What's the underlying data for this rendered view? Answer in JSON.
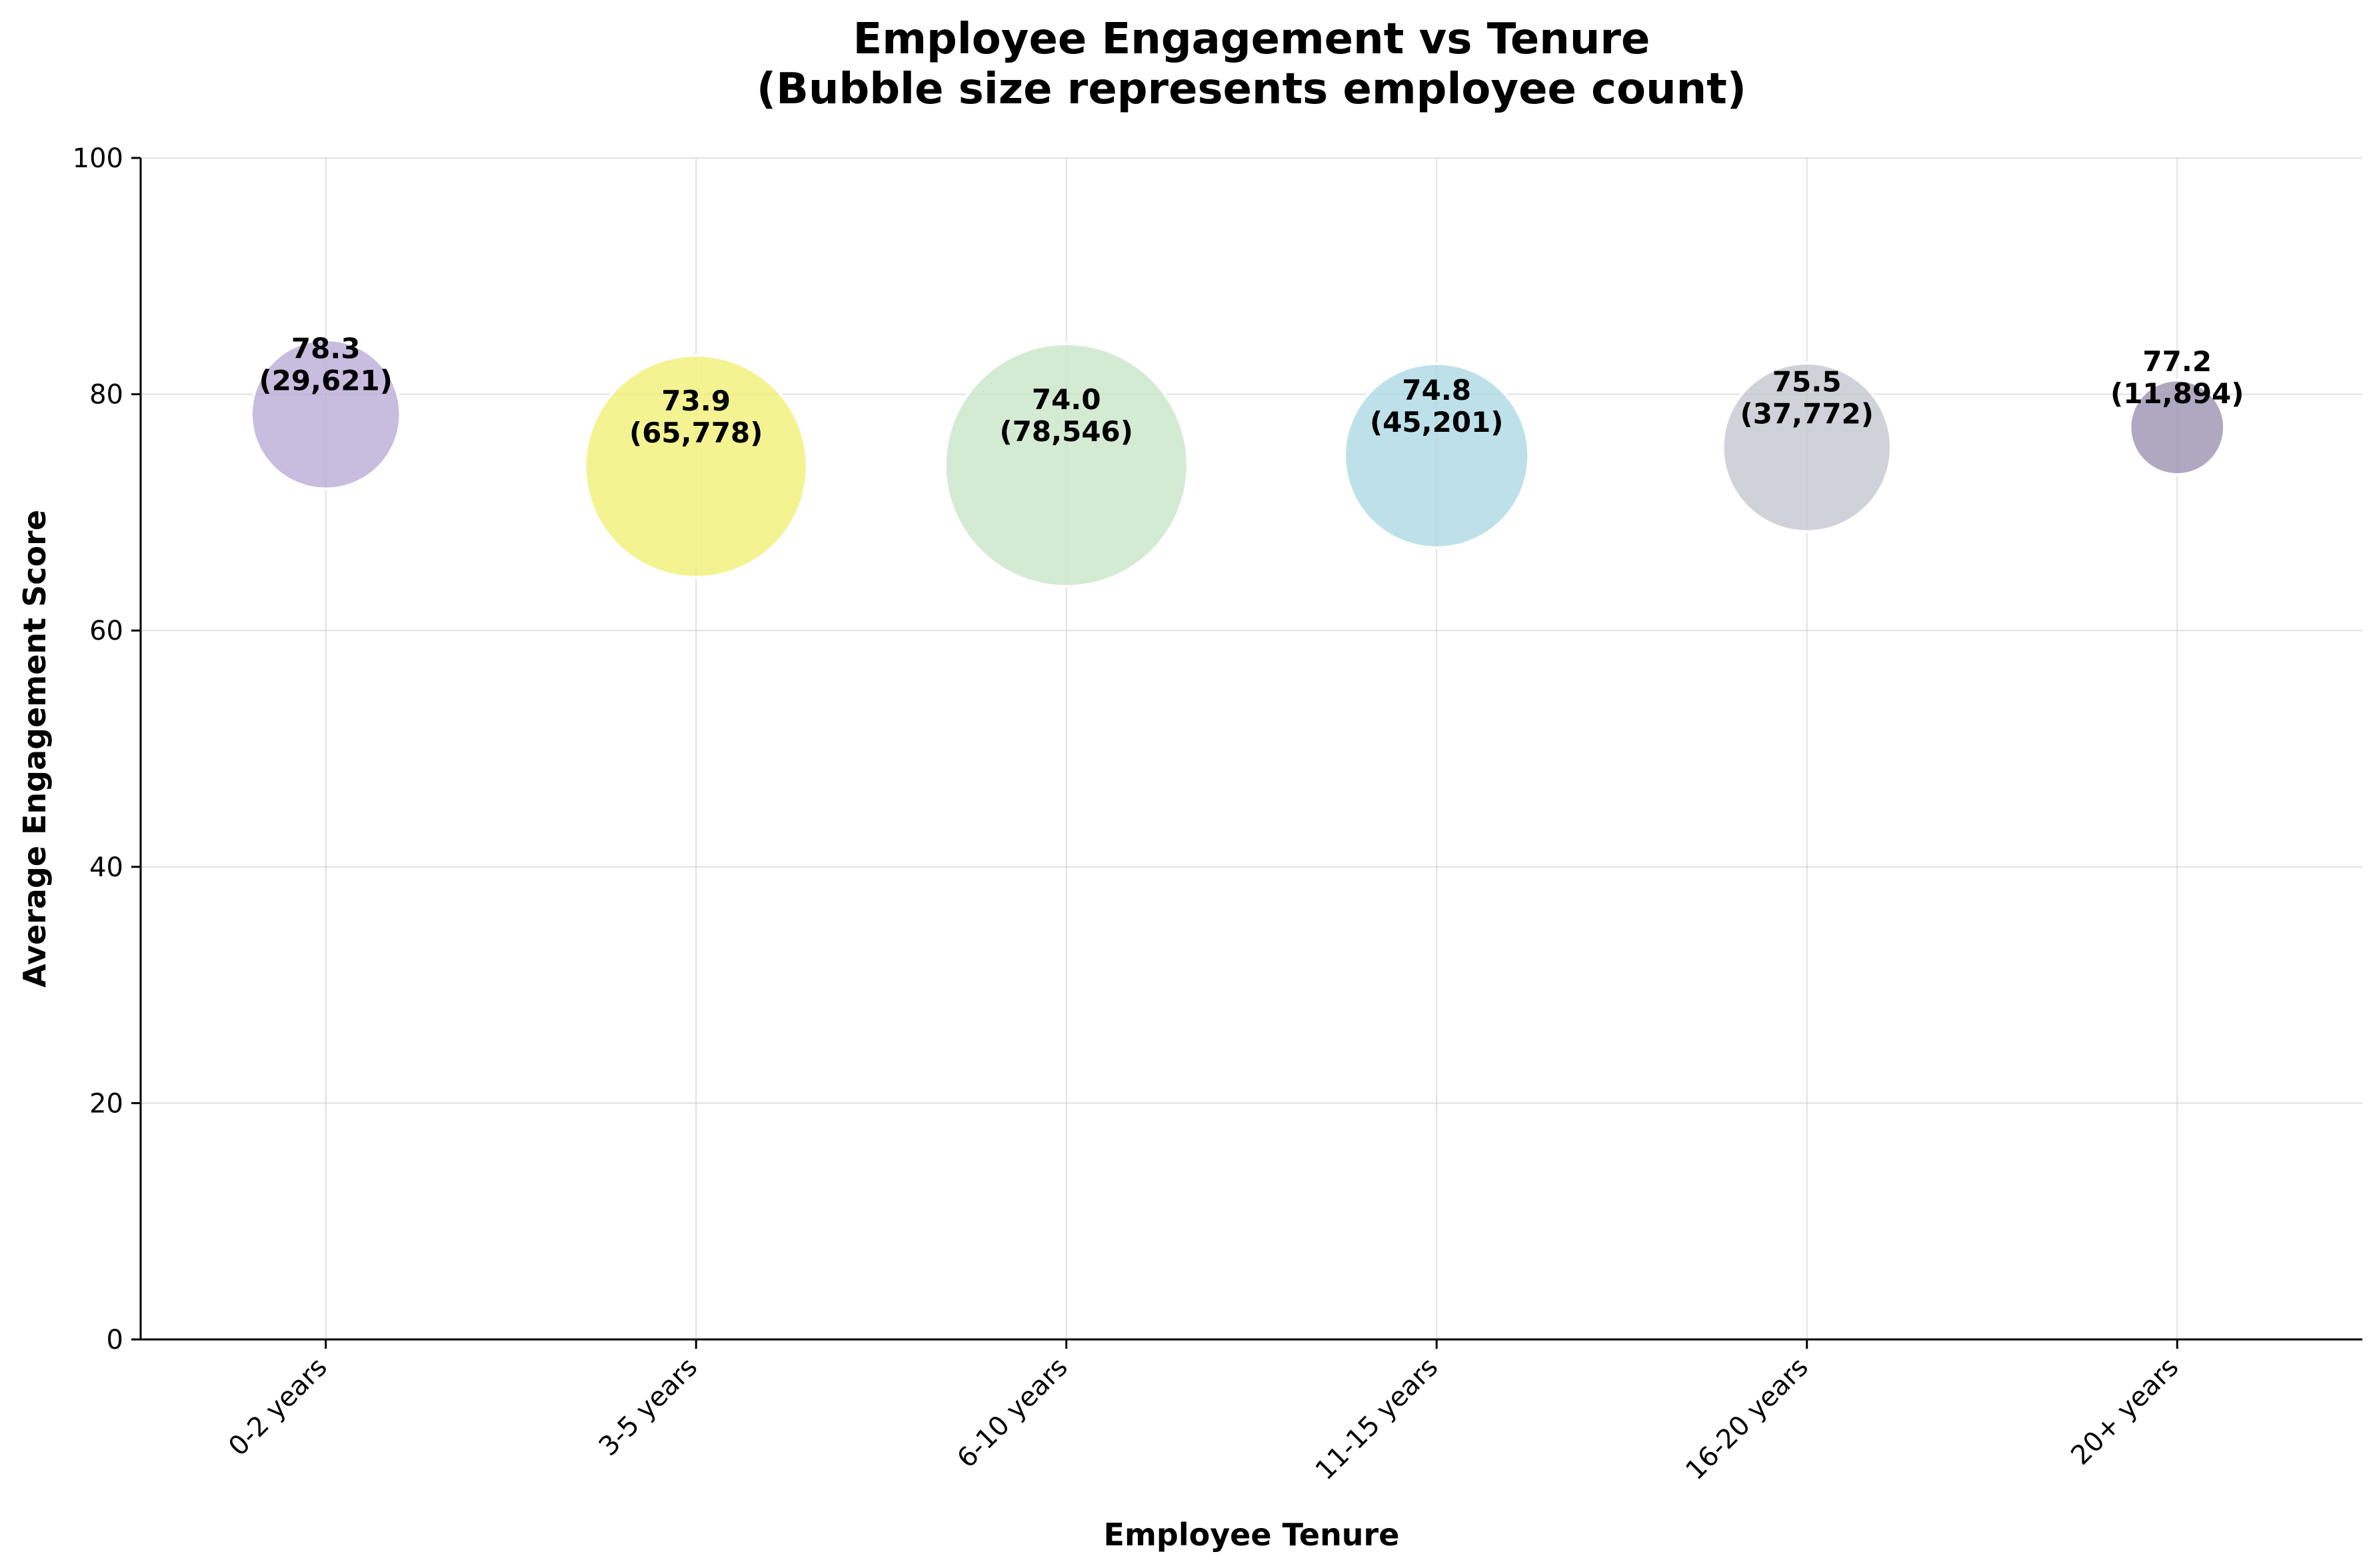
{
  "chart_data": {
    "type": "scatter",
    "title": "Employee Engagement vs Tenure\n(Bubble size represents employee count)",
    "xlabel": "Employee Tenure",
    "ylabel": "Average Engagement Score",
    "ylim": [
      0,
      100
    ],
    "yticks": [
      0,
      20,
      40,
      60,
      80,
      100
    ],
    "grid": true,
    "categories": [
      "0-2 years",
      "3-5 years",
      "6-10 years",
      "11-15 years",
      "16-20 years",
      "20+ years"
    ],
    "values": [
      78.3,
      73.9,
      74.0,
      74.8,
      75.5,
      77.2
    ],
    "sizes": [
      29621,
      65778,
      78546,
      45201,
      37772,
      11894
    ],
    "value_labels": [
      "78.3",
      "73.9",
      "74.0",
      "74.8",
      "75.5",
      "77.2"
    ],
    "size_labels": [
      "(29,621)",
      "(65,778)",
      "(78,546)",
      "(45,201)",
      "(37,772)",
      "(11,894)"
    ],
    "colors": [
      "#b8a9d6",
      "#eff073",
      "#c8e5c6",
      "#acd7e3",
      "#c3c5ce",
      "#9a8faf"
    ]
  }
}
